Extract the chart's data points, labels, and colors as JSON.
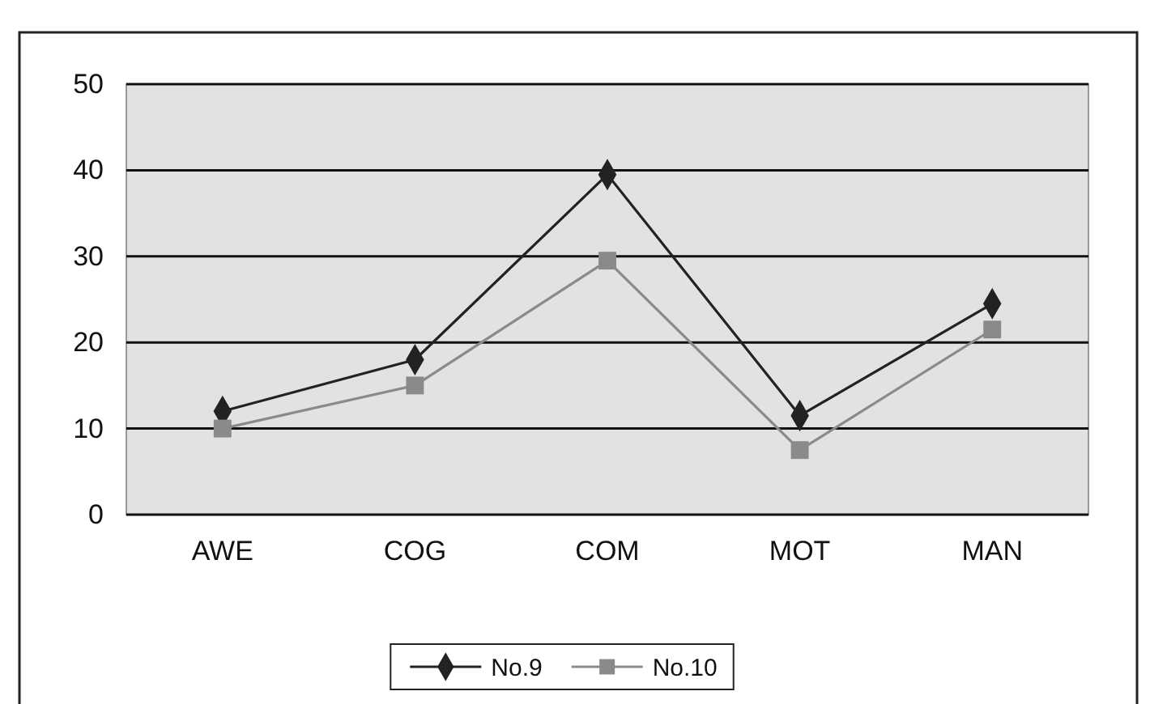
{
  "chart_data": {
    "type": "line",
    "categories": [
      "AWE",
      "COG",
      "COM",
      "MOT",
      "MAN"
    ],
    "series": [
      {
        "name": "No.9",
        "color": "#222222",
        "marker": "diamond",
        "values": [
          12,
          18,
          39.5,
          11.5,
          24.5
        ]
      },
      {
        "name": "No.10",
        "color": "#8a8a8a",
        "marker": "square",
        "values": [
          10,
          15,
          29.5,
          7.5,
          21.5
        ]
      }
    ],
    "ylim": [
      0,
      50
    ],
    "yticks": [
      0,
      10,
      20,
      30,
      40,
      50
    ],
    "grid": "y",
    "legend": "bottom"
  }
}
